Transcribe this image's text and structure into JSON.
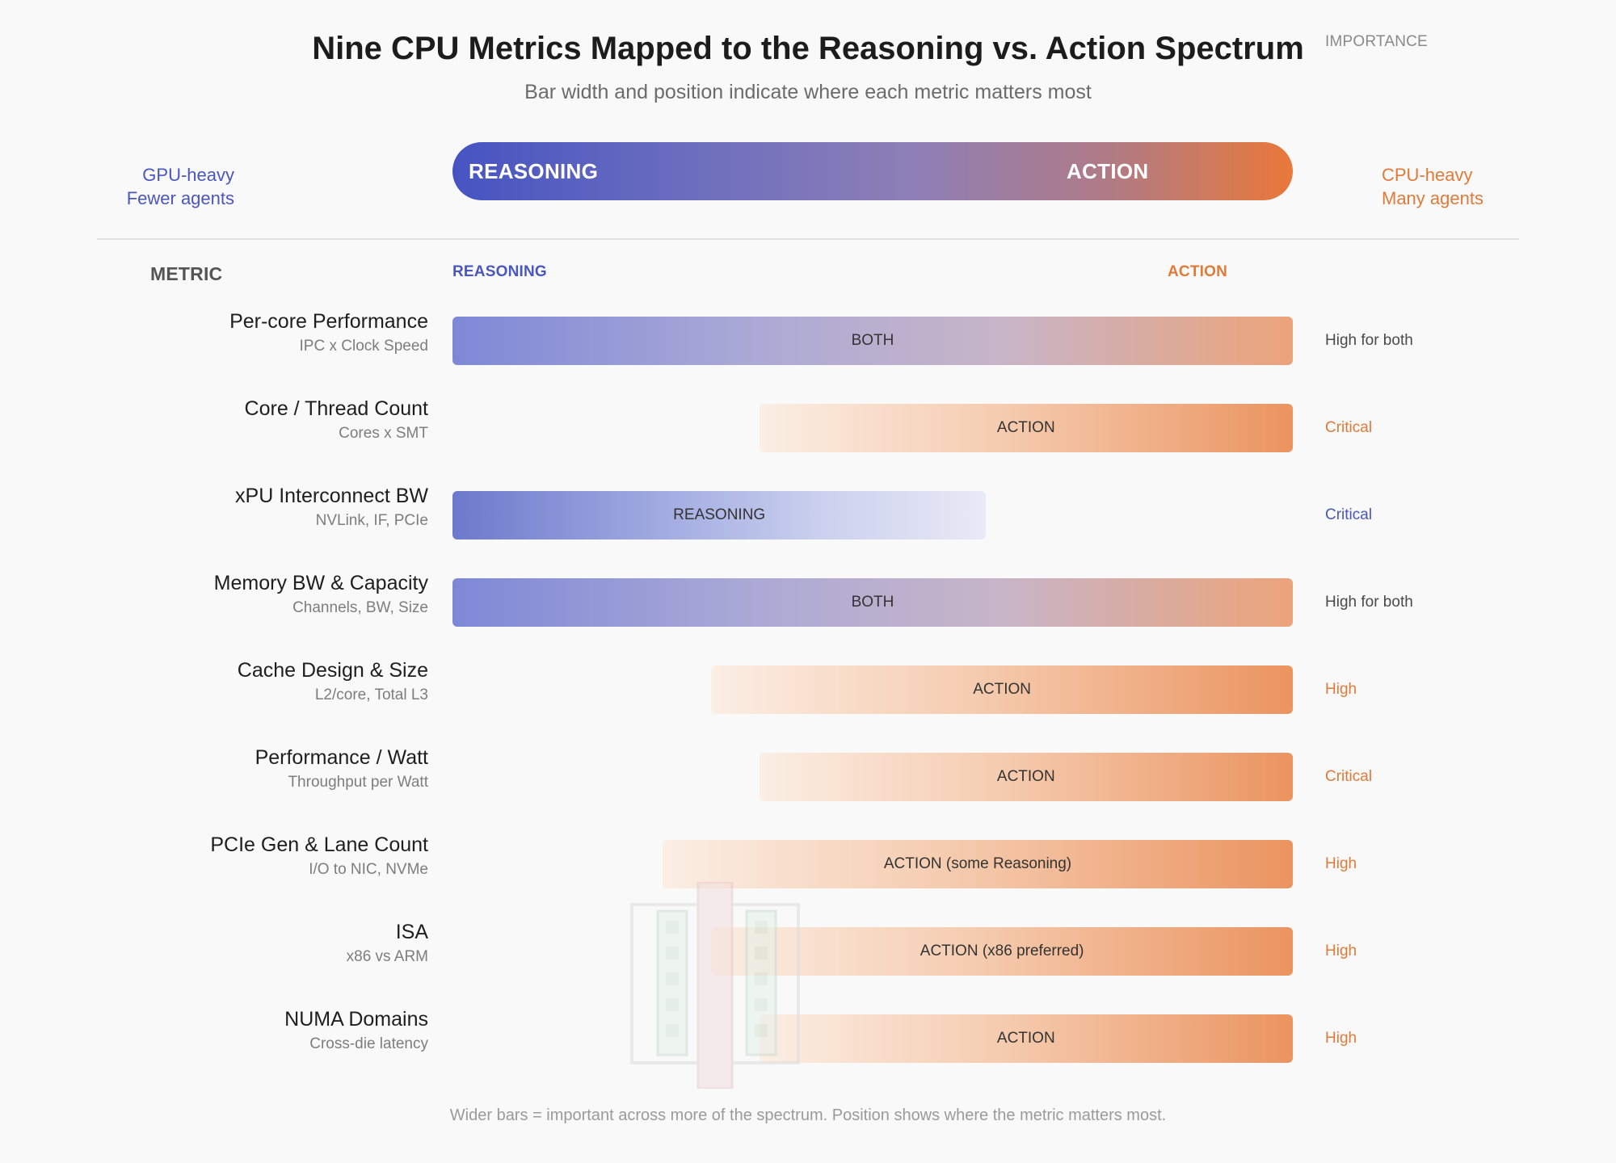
{
  "title": "Nine CPU Metrics Mapped to the Reasoning vs. Action Spectrum",
  "subtitle": "Bar width and position indicate where each metric matters most",
  "left_side": [
    "GPU-heavy",
    "Fewer agents"
  ],
  "right_side": [
    "CPU-heavy",
    "Many agents"
  ],
  "spectrum": {
    "left_label": "REASONING",
    "right_label": "ACTION"
  },
  "columns": {
    "metric": "METRIC",
    "reasoning": "REASONING",
    "action": "ACTION",
    "importance": "IMPORTANCE"
  },
  "colors": {
    "reasoning": "#4a56c0",
    "action": "#e07a38",
    "neutral": "#4a4a4a"
  },
  "metrics": [
    {
      "name": "Per-core Performance",
      "sub": "IPC x Clock Speed",
      "label": "BOTH",
      "kind": "both",
      "start": 0.0,
      "end": 1.0,
      "importance": "High for both",
      "importance_tone": "neutral"
    },
    {
      "name": "Core / Thread Count",
      "sub": "Cores x SMT",
      "label": "ACTION",
      "kind": "action",
      "start": 0.365,
      "end": 1.0,
      "importance": "Critical",
      "importance_tone": "orange"
    },
    {
      "name": "xPU Interconnect BW",
      "sub": "NVLink, IF, PCIe",
      "label": "REASONING",
      "kind": "reasoning",
      "start": 0.0,
      "end": 0.635,
      "importance": "Critical",
      "importance_tone": "blue"
    },
    {
      "name": "Memory BW & Capacity",
      "sub": "Channels, BW, Size",
      "label": "BOTH",
      "kind": "both",
      "start": 0.0,
      "end": 1.0,
      "importance": "High for both",
      "importance_tone": "neutral"
    },
    {
      "name": "Cache Design & Size",
      "sub": "L2/core, Total L3",
      "label": "ACTION",
      "kind": "action",
      "start": 0.308,
      "end": 1.0,
      "importance": "High",
      "importance_tone": "orange"
    },
    {
      "name": "Performance / Watt",
      "sub": "Throughput per Watt",
      "label": "ACTION",
      "kind": "action",
      "start": 0.365,
      "end": 1.0,
      "importance": "Critical",
      "importance_tone": "orange"
    },
    {
      "name": "PCIe Gen & Lane Count",
      "sub": "I/O to NIC, NVMe",
      "label": "ACTION (some Reasoning)",
      "kind": "action",
      "start": 0.25,
      "end": 1.0,
      "importance": "High",
      "importance_tone": "orange"
    },
    {
      "name": "ISA",
      "sub": "x86 vs ARM",
      "label": "ACTION (x86 preferred)",
      "kind": "action",
      "start": 0.308,
      "end": 1.0,
      "importance": "High",
      "importance_tone": "orange"
    },
    {
      "name": "NUMA Domains",
      "sub": "Cross-die latency",
      "label": "ACTION",
      "kind": "action",
      "start": 0.365,
      "end": 1.0,
      "importance": "High",
      "importance_tone": "orange"
    }
  ],
  "footnote": "Wider bars = important across more of the spectrum. Position shows where the metric matters most."
}
